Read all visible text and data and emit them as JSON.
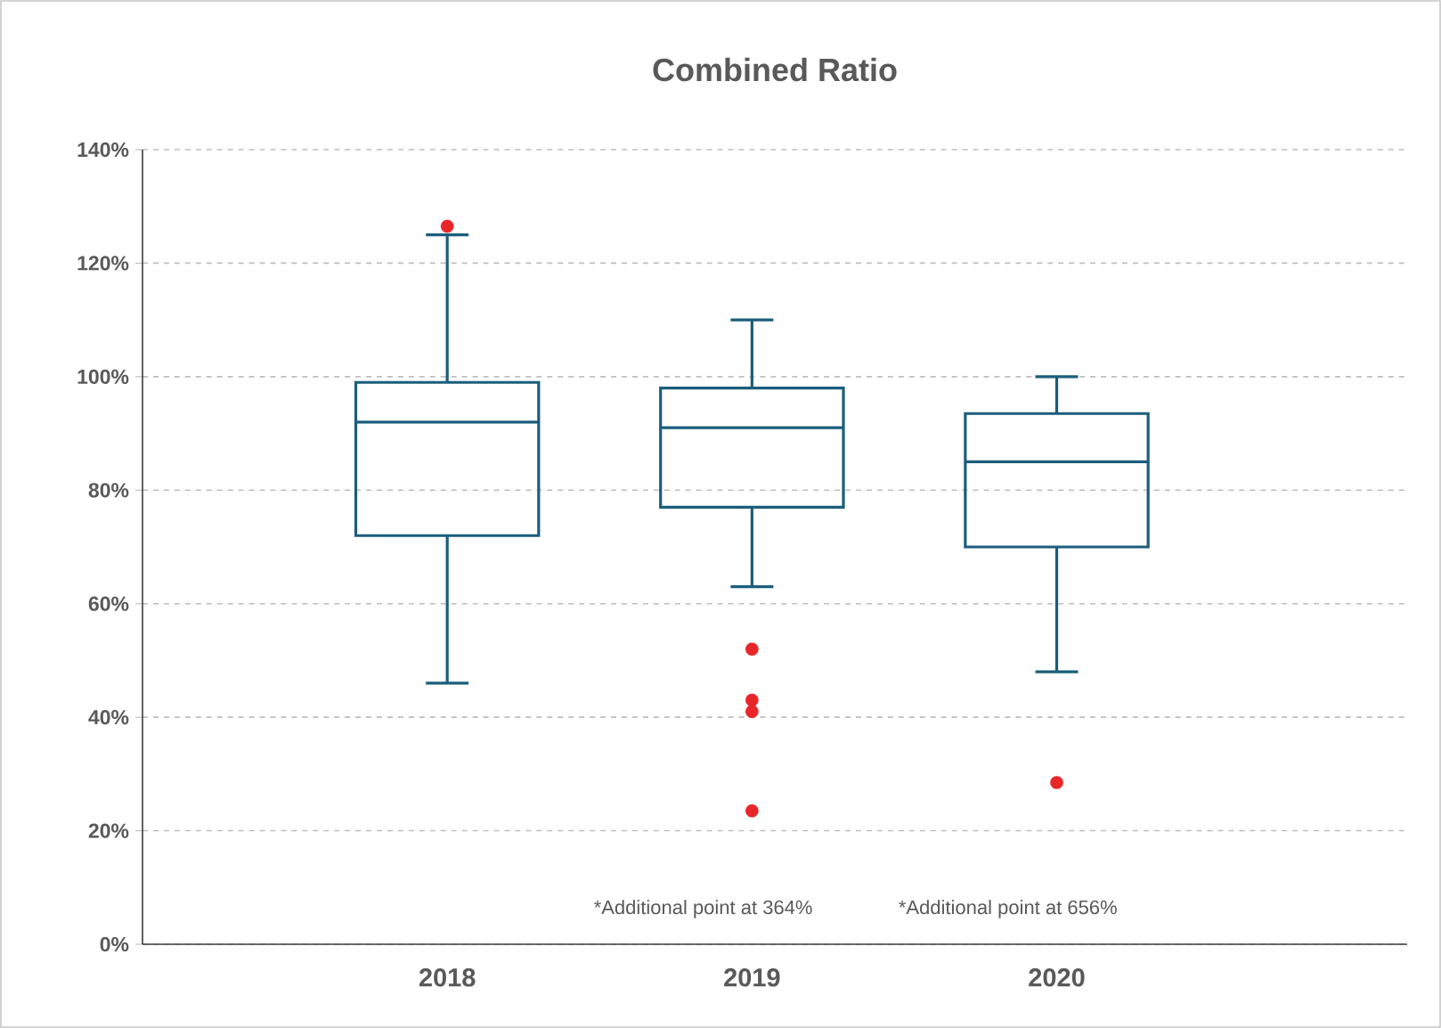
{
  "chart_data": {
    "type": "box",
    "title": "Combined Ratio",
    "categories": [
      "2018",
      "2019",
      "2020"
    ],
    "series": [
      {
        "color": "#1b5e7b",
        "boxes": [
          {
            "low": 46,
            "q1": 72,
            "median": 92,
            "q3": 99,
            "high": 125,
            "outliers": [
              126.5
            ]
          },
          {
            "low": 63,
            "q1": 77,
            "median": 91,
            "q3": 98,
            "high": 110,
            "outliers": [
              52,
              43,
              41,
              23.5
            ]
          },
          {
            "low": 48,
            "q1": 70,
            "median": 85,
            "q3": 93.5,
            "high": 100,
            "outliers": [
              28.5
            ]
          }
        ]
      }
    ],
    "ylim": [
      0,
      140
    ],
    "yticks": [
      {
        "value": 0,
        "label": "0%"
      },
      {
        "value": 20,
        "label": "20%"
      },
      {
        "value": 40,
        "label": "40%"
      },
      {
        "value": 60,
        "label": "60%"
      },
      {
        "value": 80,
        "label": "80%"
      },
      {
        "value": 100,
        "label": "100%"
      },
      {
        "value": 120,
        "label": "120%"
      },
      {
        "value": 140,
        "label": "140%"
      }
    ],
    "grid": "y",
    "annotations": [
      "*Additional point at 364%",
      "*Additional point at 656%"
    ]
  }
}
